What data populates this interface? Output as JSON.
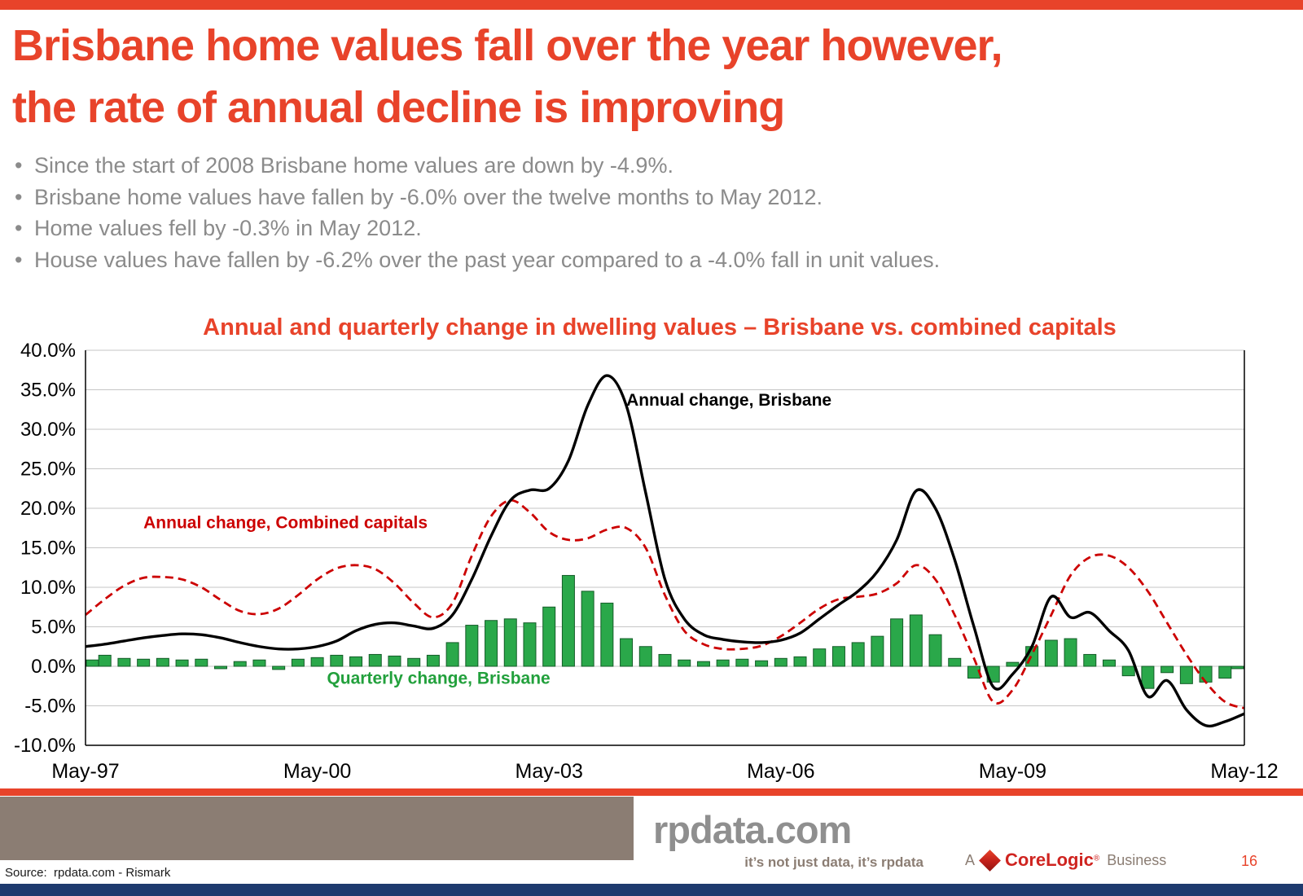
{
  "page": {
    "colors": {
      "accent_red": "#e8432a",
      "line_red": "#cc0000",
      "bar_green": "#2aa84a",
      "taupe": "#8b7d73",
      "navy": "#1e3a6e",
      "text_gray": "#8b8b8b"
    },
    "title_line1": "Brisbane home values fall over the year however,",
    "title_line2": "the rate of annual decline is improving",
    "bullets": [
      "Since the start of 2008 Brisbane home values are down by -4.9%.",
      "Brisbane home values have fallen by -6.0% over the twelve months to May 2012.",
      "Home values fell by -0.3% in May 2012.",
      "House values have fallen by -6.2% over the past year compared to a -4.0% fall in unit values."
    ],
    "footer": {
      "source": "Source:  rpdata.com - Rismark",
      "logo": "rpdata.com",
      "tagline": "it’s not just data, it’s rpdata",
      "corelogic_prefix": "A",
      "corelogic_name": "CoreLogic",
      "corelogic_reg": "®",
      "corelogic_suffix": "Business",
      "page_number": "16"
    }
  },
  "chart_data": {
    "type": "combo",
    "title": "Annual and quarterly change in dwelling values – Brisbane vs. combined capitals",
    "x_frequency": "quarterly",
    "x_range": [
      "May-97",
      "May-12"
    ],
    "x_tick_labels": [
      "May-97",
      "May-00",
      "May-03",
      "May-06",
      "May-09",
      "May-12"
    ],
    "x_tick_indices": [
      0,
      12,
      24,
      36,
      48,
      60
    ],
    "ylim": [
      -10,
      40
    ],
    "y_tick_step": 5,
    "y_tick_labels": [
      "40.0%",
      "35.0%",
      "30.0%",
      "25.0%",
      "20.0%",
      "15.0%",
      "10.0%",
      "5.0%",
      "0.0%",
      "-5.0%",
      "-10.0%"
    ],
    "grid": true,
    "series": [
      {
        "name": "Annual change, Brisbane",
        "type": "line",
        "color": "#000000",
        "dash": false,
        "values": [
          2.5,
          2.8,
          3.2,
          3.6,
          3.9,
          4.1,
          4.0,
          3.6,
          3.0,
          2.5,
          2.2,
          2.2,
          2.5,
          3.2,
          4.5,
          5.3,
          5.5,
          5.1,
          4.8,
          6.5,
          11.0,
          16.5,
          21.0,
          22.3,
          22.5,
          26.0,
          33.0,
          36.8,
          33.0,
          22.0,
          11.0,
          6.0,
          4.0,
          3.4,
          3.1,
          3.0,
          3.3,
          4.2,
          6.0,
          7.8,
          9.5,
          12.0,
          16.0,
          22.2,
          20.0,
          13.5,
          5.0,
          -2.6,
          -1.0,
          2.5,
          8.8,
          6.2,
          6.8,
          4.5,
          2.0,
          -3.8,
          -1.8,
          -5.5,
          -7.5,
          -7.0,
          -6.0
        ]
      },
      {
        "name": "Annual change, Combined capitals",
        "type": "line",
        "color": "#cc0000",
        "dash": true,
        "values": [
          6.5,
          8.5,
          10.2,
          11.2,
          11.3,
          11.0,
          10.0,
          8.4,
          7.0,
          6.6,
          7.3,
          9.0,
          11.0,
          12.4,
          12.8,
          12.3,
          10.5,
          8.0,
          6.2,
          8.0,
          14.0,
          19.0,
          21.0,
          19.5,
          17.0,
          16.0,
          16.2,
          17.3,
          17.5,
          15.0,
          9.0,
          4.5,
          2.8,
          2.2,
          2.2,
          2.6,
          3.8,
          5.5,
          7.3,
          8.5,
          8.8,
          9.2,
          10.5,
          12.8,
          11.0,
          6.5,
          1.0,
          -4.5,
          -3.0,
          1.5,
          6.5,
          11.5,
          13.8,
          14.0,
          12.5,
          9.5,
          5.5,
          1.5,
          -2.0,
          -4.5,
          -5.3
        ]
      },
      {
        "name": "Quarterly change, Brisbane",
        "type": "bar",
        "color": "#2aa84a",
        "values": [
          0.8,
          1.4,
          1.0,
          0.9,
          1.0,
          0.8,
          0.9,
          -0.3,
          0.6,
          0.8,
          -0.4,
          0.9,
          1.1,
          1.4,
          1.2,
          1.5,
          1.3,
          1.0,
          1.4,
          3.0,
          5.2,
          5.8,
          6.0,
          5.5,
          7.5,
          11.5,
          9.5,
          8.0,
          3.5,
          2.5,
          1.5,
          0.8,
          0.6,
          0.8,
          0.9,
          0.7,
          1.0,
          1.2,
          2.2,
          2.5,
          3.0,
          3.8,
          6.0,
          6.5,
          4.0,
          1.0,
          -1.5,
          -2.0,
          0.5,
          2.5,
          3.3,
          3.5,
          1.5,
          0.8,
          -1.2,
          -2.8,
          -0.8,
          -2.2,
          -2.0,
          -1.5,
          -0.3
        ]
      }
    ],
    "annotations": [
      {
        "name": "annotation-annual-brisbane",
        "text": "Annual change, Brisbane",
        "color": "#000000",
        "xi": 28,
        "y": 33.0
      },
      {
        "name": "annotation-annual-combined",
        "text": "Annual change, Combined capitals",
        "color": "#cc0000",
        "xi": 3,
        "y": 17.5
      },
      {
        "name": "annotation-quarterly-brisbane",
        "text": "Quarterly change, Brisbane",
        "color": "#22a03c",
        "xi": 12.5,
        "y": -2.2
      }
    ]
  }
}
